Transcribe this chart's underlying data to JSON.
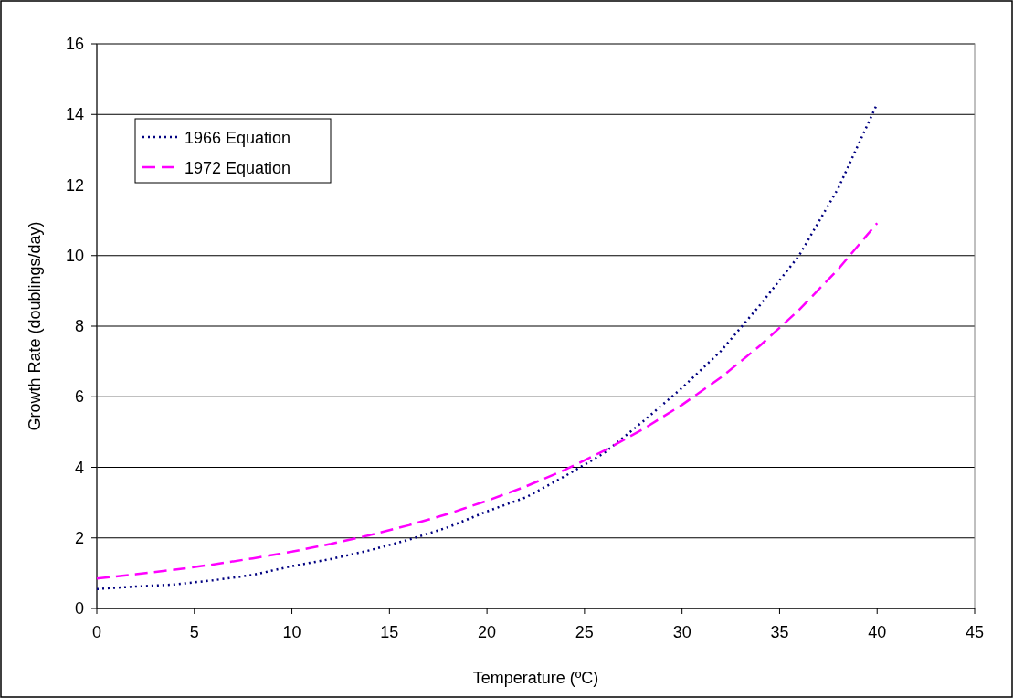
{
  "chart_data": {
    "type": "line",
    "xlabel": "Temperature (ºC)",
    "ylabel": "Growth Rate (doublings/day)",
    "xlim": [
      0,
      45
    ],
    "xticks": [
      0,
      5,
      10,
      15,
      20,
      25,
      30,
      35,
      40,
      45
    ],
    "ylim": [
      0,
      16
    ],
    "yticks": [
      0,
      2,
      4,
      6,
      8,
      10,
      12,
      14,
      16
    ],
    "grid": "y",
    "legend": "top left",
    "x": [
      0,
      2,
      4,
      6,
      8,
      10,
      12,
      14,
      16,
      18,
      20,
      22,
      24,
      26,
      28,
      30,
      32,
      34,
      36,
      38,
      40
    ],
    "series": [
      {
        "name": "1966 Equation",
        "color": "#000080",
        "line_style": "dotted",
        "values": [
          0.55,
          0.62,
          0.68,
          0.8,
          0.95,
          1.2,
          1.4,
          1.65,
          1.95,
          2.3,
          2.75,
          3.15,
          3.75,
          4.4,
          5.3,
          6.25,
          7.3,
          8.6,
          10.0,
          11.9,
          14.3
        ]
      },
      {
        "name": "1972 Equation",
        "color": "#ff00ff",
        "line_style": "dashed",
        "values": [
          0.85,
          0.97,
          1.1,
          1.25,
          1.42,
          1.61,
          1.83,
          2.08,
          2.36,
          2.68,
          3.05,
          3.46,
          3.93,
          4.47,
          5.08,
          5.77,
          6.55,
          7.45,
          8.46,
          9.61,
          10.92
        ]
      }
    ]
  }
}
